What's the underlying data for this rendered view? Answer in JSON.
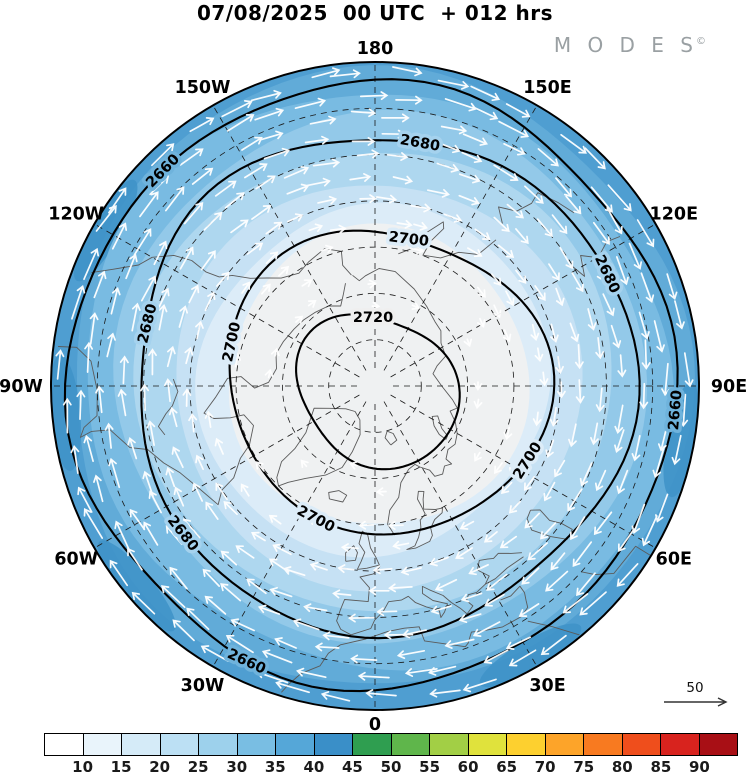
{
  "header": {
    "title": "07/08/2025  00 UTC  + 012 hrs",
    "logo": "M O D E S",
    "logo_mark": "©"
  },
  "chart_data": {
    "type": "contour-map",
    "projection": "north-polar-stereographic",
    "valid": {
      "date": "07/08/2025",
      "cycle": "00 UTC",
      "lead": "+ 012 hrs"
    },
    "longitude_labels": [
      {
        "text": "180",
        "lon": 180
      },
      {
        "text": "150W",
        "lon": -150
      },
      {
        "text": "150E",
        "lon": 150
      },
      {
        "text": "120W",
        "lon": -120
      },
      {
        "text": "120E",
        "lon": 120
      },
      {
        "text": "90W",
        "lon": -90
      },
      {
        "text": "90E",
        "lon": 90
      },
      {
        "text": "60W",
        "lon": -60
      },
      {
        "text": "60E",
        "lon": 60
      },
      {
        "text": "30W",
        "lon": -30
      },
      {
        "text": "30E",
        "lon": 30
      },
      {
        "text": "0",
        "lon": 0
      }
    ],
    "graticule": {
      "lat_circles": [
        30,
        40,
        50,
        60,
        70,
        80
      ],
      "lon_step": 30
    },
    "contours": {
      "levels": [
        2660,
        2680,
        2700,
        2720
      ],
      "inline_labels": [
        {
          "level": 2660,
          "angle": -135,
          "halo": "#6fb3dc"
        },
        {
          "level": 2660,
          "angle": 115,
          "halo": "#6fb3dc"
        },
        {
          "level": 2660,
          "angle": 5,
          "halo": "#6fb3dc"
        },
        {
          "level": 2680,
          "angle": -80,
          "halo": "#a5d2ee"
        },
        {
          "level": 2680,
          "angle": -166,
          "halo": "#a5d2ee"
        },
        {
          "level": 2680,
          "angle": -25,
          "halo": "#a5d2ee"
        },
        {
          "level": 2680,
          "angle": 142,
          "halo": "#a5d2ee"
        },
        {
          "level": 2700,
          "angle": -83,
          "halo": "#dcecf8"
        },
        {
          "level": 2700,
          "angle": -168,
          "halo": "#dcecf8"
        },
        {
          "level": 2700,
          "angle": 118,
          "halo": "#dcecf8"
        },
        {
          "level": 2700,
          "angle": 32,
          "halo": "#dcecf8"
        },
        {
          "level": 2720,
          "angle": -90,
          "halo": "#efefef"
        }
      ]
    },
    "shading": {
      "band_colors": [
        "#4f9ed1",
        "#61abd8",
        "#79bbe2",
        "#93c9e9",
        "#aed7ef",
        "#c6e1f4",
        "#dcecf8",
        "#eff1f2"
      ],
      "patch_color": "#3e92c8",
      "patch_angles": [
        -150,
        175,
        140,
        10,
        60
      ]
    },
    "wind": {
      "style": "white-arrows",
      "rotation": "clockwise-easterly",
      "reference_label": "50"
    },
    "colorbar": {
      "tick_labels": [
        "10",
        "15",
        "20",
        "25",
        "30",
        "35",
        "40",
        "45",
        "50",
        "55",
        "60",
        "65",
        "70",
        "75",
        "80",
        "85",
        "90"
      ],
      "colors": [
        "#ffffff",
        "#e9f4fb",
        "#d5ebf8",
        "#bce0f4",
        "#9dd1ec",
        "#79bee3",
        "#55a7d8",
        "#3a8fc8",
        "#2f9e50",
        "#5fb64b",
        "#a2cf45",
        "#e0e23c",
        "#fdd02f",
        "#fda429",
        "#f87a20",
        "#ef4e1c",
        "#d8231e",
        "#a80f15"
      ]
    }
  }
}
